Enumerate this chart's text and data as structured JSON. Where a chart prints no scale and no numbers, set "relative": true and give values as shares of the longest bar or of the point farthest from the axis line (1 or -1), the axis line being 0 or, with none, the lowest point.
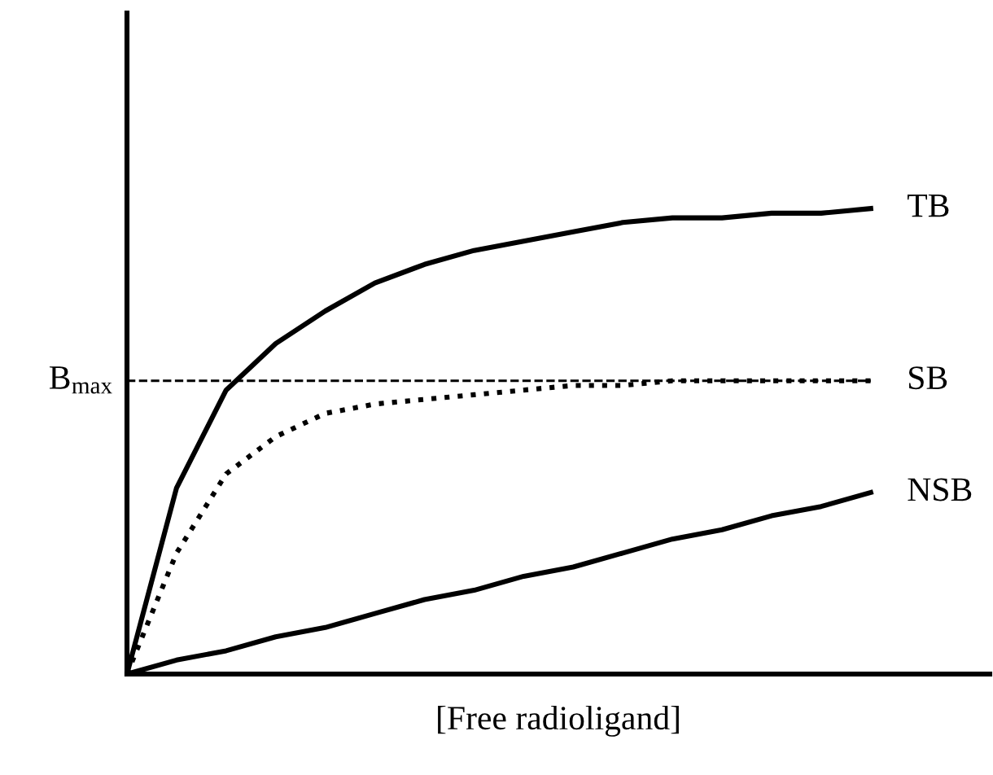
{
  "chart_data": {
    "type": "line",
    "relative": true,
    "xlabel": "[Free radioligand]",
    "legend": false,
    "categories": [
      null,
      null,
      null,
      null,
      null,
      null,
      null,
      null,
      null,
      null,
      null,
      null,
      null,
      null,
      null,
      null
    ],
    "series": [
      {
        "name": "TB",
        "color": "#000000",
        "line_style": "solid",
        "values": [
          0,
          0.4,
          0.61,
          0.71,
          0.78,
          0.84,
          0.88,
          0.91,
          0.93,
          0.95,
          0.97,
          0.98,
          0.98,
          0.99,
          0.99,
          1
        ]
      },
      {
        "name": "SB",
        "color": "#000000",
        "line_style": "dotted",
        "values": [
          0,
          0.26,
          0.43,
          0.51,
          0.56,
          0.58,
          0.59,
          0.6,
          0.61,
          0.62,
          0.62,
          0.63,
          0.63,
          0.63,
          0.63,
          0.63
        ]
      },
      {
        "name": "NSB",
        "color": "#000000",
        "line_style": "solid",
        "values": [
          0,
          0.03,
          0.05,
          0.08,
          0.1,
          0.13,
          0.16,
          0.18,
          0.21,
          0.23,
          0.26,
          0.29,
          0.31,
          0.34,
          0.36,
          0.39
        ]
      }
    ],
    "ref_lines": [
      {
        "axis": "y",
        "value": 0.63,
        "label": "B$_{max}$",
        "color": "#000000",
        "line_style": "dashed"
      }
    ]
  }
}
